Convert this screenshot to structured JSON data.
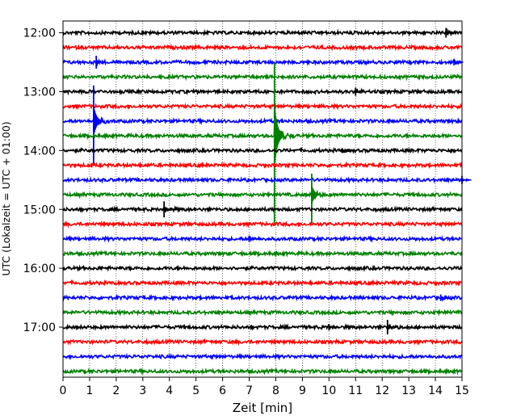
{
  "chart_data": {
    "type": "line",
    "xlabel": "Zeit  [min]",
    "ylabel": "UTC (Lokalzeit = UTC + 01:00)",
    "xlim": [
      0,
      15
    ],
    "x_ticks": [
      "0",
      "1",
      "2",
      "3",
      "4",
      "5",
      "6",
      "7",
      "8",
      "9",
      "10",
      "11",
      "12",
      "13",
      "14",
      "15"
    ],
    "y_ticks": [
      "12:00",
      "13:00",
      "14:00",
      "15:00",
      "16:00",
      "17:00"
    ],
    "ylim": [
      "11:48",
      "17:51"
    ],
    "grid": "vertical dotted",
    "trace_interval_min": 15,
    "trace_colors": [
      "#000000",
      "#ff0000",
      "#0000ff",
      "#008000"
    ],
    "traces": [
      {
        "start": "12:00",
        "color": "#000000",
        "events": [
          {
            "x": 14.4,
            "amp": 6
          }
        ]
      },
      {
        "start": "12:15",
        "color": "#ff0000",
        "events": []
      },
      {
        "start": "12:30",
        "color": "#0000ff",
        "events": [
          {
            "x": 1.25,
            "amp": 8
          },
          {
            "x": 14.7,
            "amp": 4
          }
        ]
      },
      {
        "start": "12:45",
        "color": "#008000",
        "events": []
      },
      {
        "start": "13:00",
        "color": "#000000",
        "events": [
          {
            "x": 11.0,
            "amp": 5
          }
        ]
      },
      {
        "start": "13:15",
        "color": "#ff0000",
        "events": []
      },
      {
        "start": "13:30",
        "color": "#0000ff",
        "events": [
          {
            "x": 1.15,
            "amp": 46,
            "up": 44,
            "down": 55
          }
        ]
      },
      {
        "start": "13:45",
        "color": "#008000",
        "events": [
          {
            "x": 7.95,
            "amp": 90,
            "up": 90,
            "down": 110
          }
        ]
      },
      {
        "start": "14:00",
        "color": "#000000",
        "events": [
          {
            "x": 10.5,
            "amp": 3
          }
        ]
      },
      {
        "start": "14:15",
        "color": "#ff0000",
        "events": []
      },
      {
        "start": "14:30",
        "color": "#0000ff",
        "events": [
          {
            "x": 15.0,
            "amp": 5
          }
        ]
      },
      {
        "start": "14:45",
        "color": "#008000",
        "events": [
          {
            "x": 9.35,
            "amp": 26,
            "up": 26,
            "down": 36
          }
        ]
      },
      {
        "start": "15:00",
        "color": "#000000",
        "events": [
          {
            "x": 3.8,
            "amp": 10
          }
        ]
      },
      {
        "start": "15:15",
        "color": "#ff0000",
        "events": []
      },
      {
        "start": "15:30",
        "color": "#0000ff",
        "events": [
          {
            "x": 7.0,
            "amp": 4
          }
        ]
      },
      {
        "start": "15:45",
        "color": "#008000",
        "events": []
      },
      {
        "start": "16:00",
        "color": "#000000",
        "events": []
      },
      {
        "start": "16:15",
        "color": "#ff0000",
        "events": []
      },
      {
        "start": "16:30",
        "color": "#0000ff",
        "events": [
          {
            "x": 14.2,
            "amp": 4
          }
        ]
      },
      {
        "start": "16:45",
        "color": "#008000",
        "events": []
      },
      {
        "start": "17:00",
        "color": "#000000",
        "events": [
          {
            "x": 10.0,
            "amp": 4
          },
          {
            "x": 12.2,
            "amp": 9
          }
        ]
      },
      {
        "start": "17:15",
        "color": "#ff0000",
        "events": []
      },
      {
        "start": "17:30",
        "color": "#0000ff",
        "events": []
      },
      {
        "start": "17:45",
        "color": "#008000",
        "events": []
      }
    ]
  }
}
